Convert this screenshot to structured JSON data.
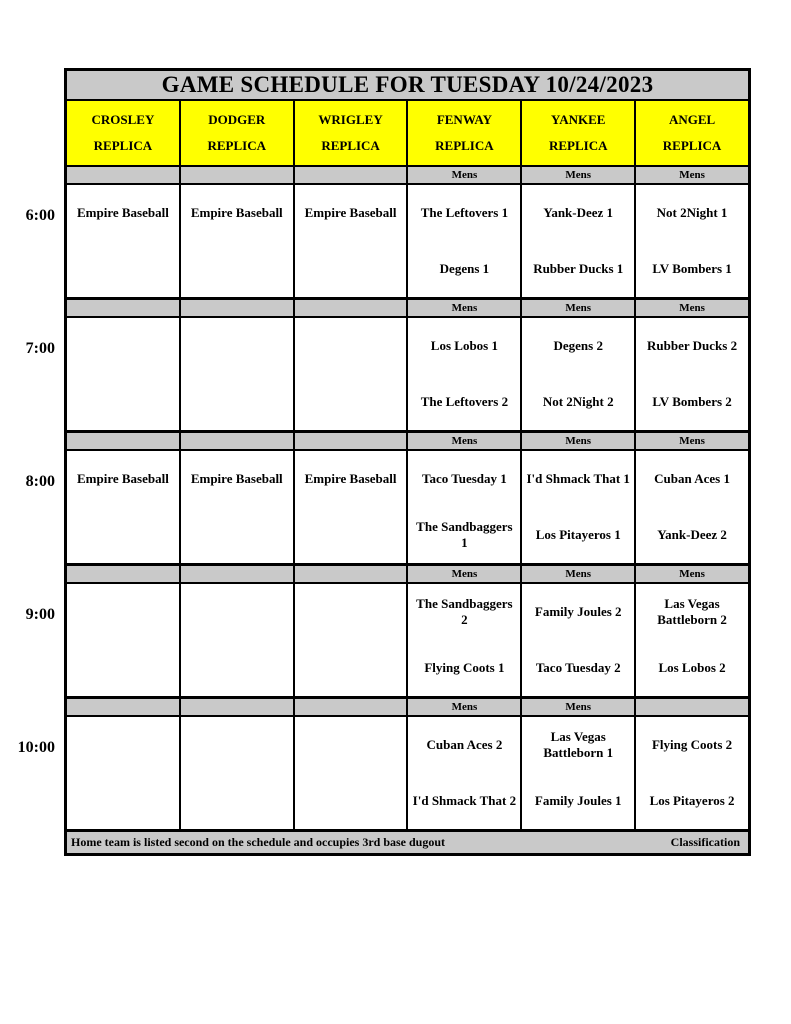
{
  "title": "GAME SCHEDULE FOR TUESDAY 10/24/2023",
  "columns": [
    {
      "line1": "CROSLEY",
      "line2": "REPLICA"
    },
    {
      "line1": "DODGER",
      "line2": "REPLICA"
    },
    {
      "line1": "WRIGLEY",
      "line2": "REPLICA"
    },
    {
      "line1": "FENWAY",
      "line2": "REPLICA"
    },
    {
      "line1": "YANKEE",
      "line2": "REPLICA"
    },
    {
      "line1": "ANGEL",
      "line2": "REPLICA"
    }
  ],
  "rows": [
    {
      "time": "6:00",
      "subheaders": [
        "",
        "",
        "",
        "Mens",
        "Mens",
        "Mens"
      ],
      "cells": [
        {
          "top": "Empire Baseball",
          "bottom": ""
        },
        {
          "top": "Empire Baseball",
          "bottom": ""
        },
        {
          "top": "Empire Baseball",
          "bottom": ""
        },
        {
          "top": "The Leftovers 1",
          "bottom": "Degens 1"
        },
        {
          "top": "Yank-Deez 1",
          "bottom": "Rubber Ducks 1"
        },
        {
          "top": "Not 2Night 1",
          "bottom": "LV Bombers 1"
        }
      ]
    },
    {
      "time": "7:00",
      "subheaders": [
        "",
        "",
        "",
        "Mens",
        "Mens",
        "Mens"
      ],
      "cells": [
        {
          "top": "",
          "bottom": ""
        },
        {
          "top": "",
          "bottom": ""
        },
        {
          "top": "",
          "bottom": ""
        },
        {
          "top": "Los Lobos 1",
          "bottom": "The Leftovers 2"
        },
        {
          "top": "Degens 2",
          "bottom": "Not 2Night 2"
        },
        {
          "top": "Rubber Ducks 2",
          "bottom": "LV Bombers 2"
        }
      ]
    },
    {
      "time": "8:00",
      "subheaders": [
        "",
        "",
        "",
        "Mens",
        "Mens",
        "Mens"
      ],
      "cells": [
        {
          "top": "Empire Baseball",
          "bottom": ""
        },
        {
          "top": "Empire Baseball",
          "bottom": ""
        },
        {
          "top": "Empire Baseball",
          "bottom": ""
        },
        {
          "top": "Taco Tuesday 1",
          "bottom": "The Sandbaggers 1"
        },
        {
          "top": "I'd Shmack That 1",
          "bottom": "Los Pitayeros 1"
        },
        {
          "top": "Cuban Aces 1",
          "bottom": "Yank-Deez 2"
        }
      ]
    },
    {
      "time": "9:00",
      "subheaders": [
        "",
        "",
        "",
        "Mens",
        "Mens",
        "Mens"
      ],
      "cells": [
        {
          "top": "",
          "bottom": ""
        },
        {
          "top": "",
          "bottom": ""
        },
        {
          "top": "",
          "bottom": ""
        },
        {
          "top": "The Sandbaggers 2",
          "bottom": "Flying Coots 1"
        },
        {
          "top": "Family Joules 2",
          "bottom": "Taco Tuesday 2"
        },
        {
          "top": "Las Vegas Battleborn 2",
          "bottom": "Los Lobos 2"
        }
      ]
    },
    {
      "time": "10:00",
      "subheaders": [
        "",
        "",
        "",
        "Mens",
        "Mens",
        ""
      ],
      "cells": [
        {
          "top": "",
          "bottom": ""
        },
        {
          "top": "",
          "bottom": ""
        },
        {
          "top": "",
          "bottom": ""
        },
        {
          "top": "Cuban Aces 2",
          "bottom": "I'd Shmack That 2"
        },
        {
          "top": "Las Vegas Battleborn 1",
          "bottom": "Family Joules 1"
        },
        {
          "top": "Flying Coots 2",
          "bottom": "Los Pitayeros 2"
        }
      ]
    }
  ],
  "footer": {
    "left": "Home team is listed second on the schedule and occupies 3rd base dugout",
    "right": "Classification"
  },
  "colors": {
    "band_gray": "#c9c9c9",
    "field_yellow": "#ffff00",
    "border_black": "#000000"
  }
}
